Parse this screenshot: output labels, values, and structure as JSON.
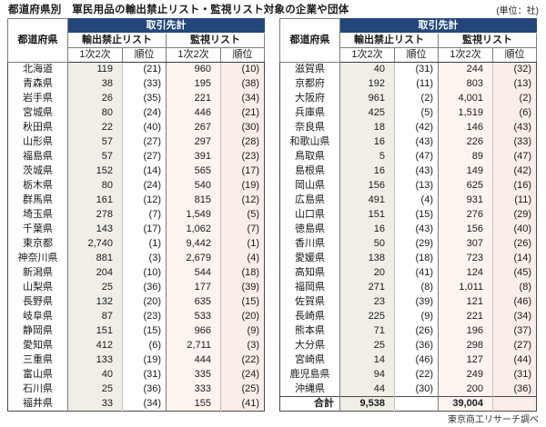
{
  "page": {
    "title": "都道府県別　軍民用品の輸出禁止リスト・監視リスト対象の企業や団体",
    "unit_note": "(単位：社)",
    "source_note": "東京商工リサーチ調べ"
  },
  "table_headers": {
    "prefecture": "都道府県",
    "total_partners": "取引先計",
    "export_ban_list": "輸出禁止リスト",
    "watch_list": "監視リスト",
    "tier": "1次2次",
    "rank": "順位"
  },
  "colors": {
    "header_navy": "#24477b",
    "ban_tier_bg": "#f1eee7",
    "watch_tier_bg": "#fdf4f0",
    "watch_rank_bg": "#fbeee9"
  },
  "chart_data": {
    "type": "table",
    "title": "都道府県別　軍民用品の輸出禁止リスト・監視リスト対象の企業や団体",
    "unit": "社",
    "source": "東京商工リサーチ調べ",
    "columns": [
      "都道府県",
      "輸出禁止リスト 1次2次",
      "輸出禁止リスト 順位",
      "監視リスト 1次2次",
      "監視リスト 順位"
    ],
    "left_rows": [
      [
        "北海道",
        "119",
        "(21)",
        "960",
        "(10)"
      ],
      [
        "青森県",
        "38",
        "(33)",
        "195",
        "(38)"
      ],
      [
        "岩手県",
        "26",
        "(35)",
        "221",
        "(34)"
      ],
      [
        "宮城県",
        "80",
        "(24)",
        "446",
        "(21)"
      ],
      [
        "秋田県",
        "22",
        "(40)",
        "267",
        "(30)"
      ],
      [
        "山形県",
        "57",
        "(27)",
        "297",
        "(28)"
      ],
      [
        "福島県",
        "57",
        "(27)",
        "391",
        "(23)"
      ],
      [
        "茨城県",
        "152",
        "(14)",
        "565",
        "(17)"
      ],
      [
        "栃木県",
        "80",
        "(24)",
        "540",
        "(19)"
      ],
      [
        "群馬県",
        "161",
        "(12)",
        "815",
        "(12)"
      ],
      [
        "埼玉県",
        "278",
        "(7)",
        "1,549",
        "(5)"
      ],
      [
        "千葉県",
        "143",
        "(17)",
        "1,062",
        "(7)"
      ],
      [
        "東京都",
        "2,740",
        "(1)",
        "9,442",
        "(1)"
      ],
      [
        "神奈川県",
        "881",
        "(3)",
        "2,679",
        "(4)"
      ],
      [
        "新潟県",
        "204",
        "(10)",
        "544",
        "(18)"
      ],
      [
        "山梨県",
        "25",
        "(36)",
        "177",
        "(39)"
      ],
      [
        "長野県",
        "132",
        "(20)",
        "635",
        "(15)"
      ],
      [
        "岐阜県",
        "87",
        "(23)",
        "533",
        "(20)"
      ],
      [
        "静岡県",
        "151",
        "(15)",
        "966",
        "(9)"
      ],
      [
        "愛知県",
        "412",
        "(6)",
        "2,711",
        "(3)"
      ],
      [
        "三重県",
        "133",
        "(19)",
        "444",
        "(22)"
      ],
      [
        "富山県",
        "40",
        "(31)",
        "335",
        "(24)"
      ],
      [
        "石川県",
        "25",
        "(36)",
        "333",
        "(25)"
      ],
      [
        "福井県",
        "33",
        "(34)",
        "155",
        "(41)"
      ]
    ],
    "right_rows": [
      [
        "滋賀県",
        "40",
        "(31)",
        "244",
        "(32)"
      ],
      [
        "京都府",
        "192",
        "(11)",
        "803",
        "(13)"
      ],
      [
        "大阪府",
        "961",
        "(2)",
        "4,001",
        "(2)"
      ],
      [
        "兵庫県",
        "425",
        "(5)",
        "1,519",
        "(6)"
      ],
      [
        "奈良県",
        "18",
        "(42)",
        "146",
        "(43)"
      ],
      [
        "和歌山県",
        "16",
        "(43)",
        "226",
        "(33)"
      ],
      [
        "鳥取県",
        "5",
        "(47)",
        "89",
        "(47)"
      ],
      [
        "島根県",
        "16",
        "(43)",
        "149",
        "(42)"
      ],
      [
        "岡山県",
        "156",
        "(13)",
        "625",
        "(16)"
      ],
      [
        "広島県",
        "491",
        "(4)",
        "931",
        "(11)"
      ],
      [
        "山口県",
        "151",
        "(15)",
        "276",
        "(29)"
      ],
      [
        "徳島県",
        "16",
        "(43)",
        "156",
        "(40)"
      ],
      [
        "香川県",
        "50",
        "(29)",
        "307",
        "(26)"
      ],
      [
        "愛媛県",
        "138",
        "(18)",
        "723",
        "(14)"
      ],
      [
        "高知県",
        "20",
        "(41)",
        "124",
        "(45)"
      ],
      [
        "福岡県",
        "271",
        "(8)",
        "1,011",
        "(8)"
      ],
      [
        "佐賀県",
        "23",
        "(39)",
        "121",
        "(46)"
      ],
      [
        "長崎県",
        "225",
        "(9)",
        "221",
        "(34)"
      ],
      [
        "熊本県",
        "71",
        "(26)",
        "196",
        "(37)"
      ],
      [
        "大分県",
        "25",
        "(36)",
        "298",
        "(27)"
      ],
      [
        "宮崎県",
        "14",
        "(46)",
        "127",
        "(44)"
      ],
      [
        "鹿児島県",
        "94",
        "(22)",
        "249",
        "(31)"
      ],
      [
        "沖縄県",
        "44",
        "(30)",
        "200",
        "(36)"
      ]
    ],
    "total_row": {
      "label": "合計",
      "export_ban_total": "9,538",
      "watch_total": "39,004"
    }
  }
}
